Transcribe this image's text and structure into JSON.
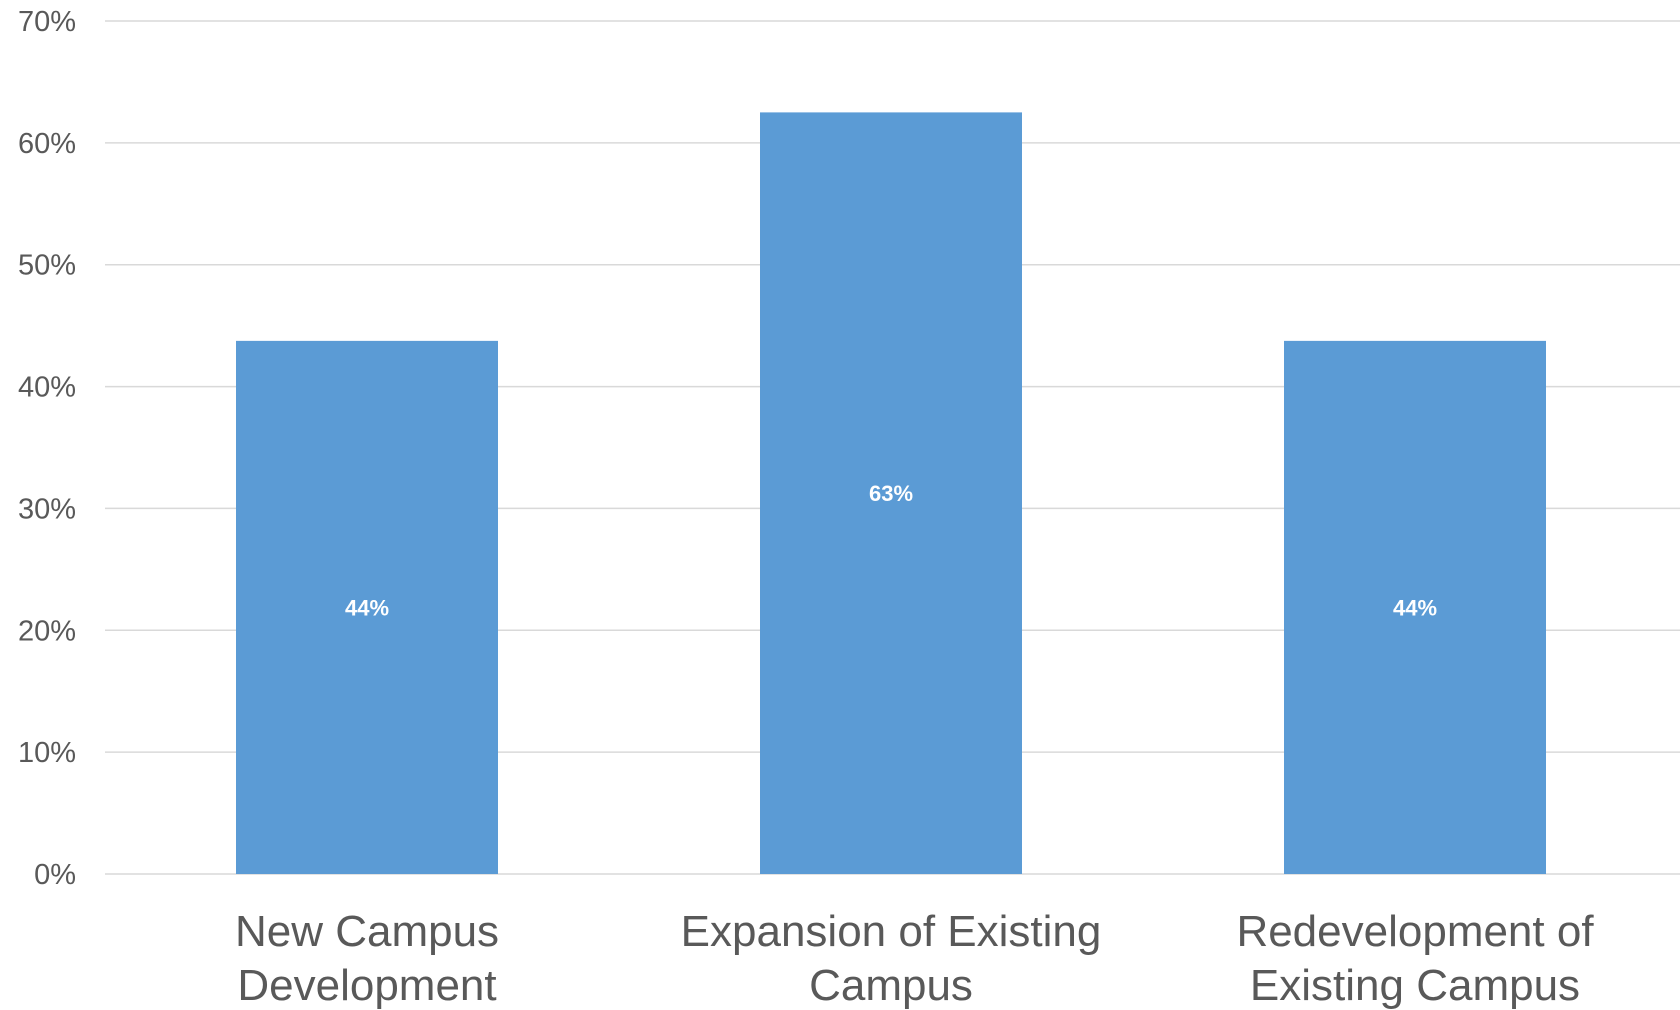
{
  "chart_data": {
    "type": "bar",
    "categories": [
      [
        "New Campus",
        "Development"
      ],
      [
        "Expansion of Existing",
        "Campus"
      ],
      [
        "Redevelopment of",
        "Existing Campus"
      ]
    ],
    "values": [
      0.4375,
      0.625,
      0.4375
    ],
    "data_labels": [
      "44%",
      "63%",
      "44%"
    ],
    "y_tick_labels": [
      "0%",
      "10%",
      "20%",
      "30%",
      "40%",
      "50%",
      "60%",
      "70%"
    ],
    "ylim": [
      0,
      0.7
    ],
    "y_tick_step": 0.1,
    "grid": true,
    "legend": "none",
    "title": "",
    "xlabel": "",
    "ylabel": "",
    "colors": {
      "bar": "#5b9bd5",
      "grid": "#d9d9d9",
      "axis_text": "#595959",
      "data_label": "#ffffff"
    }
  }
}
